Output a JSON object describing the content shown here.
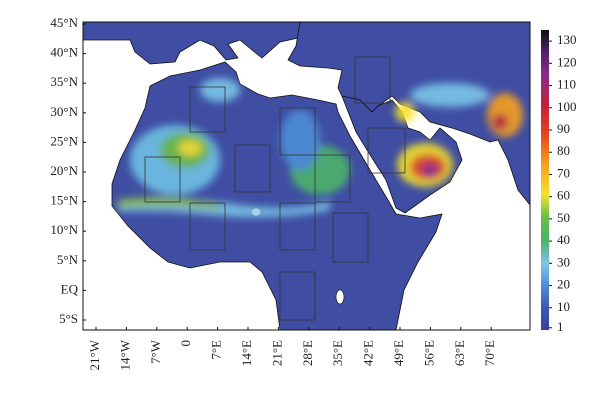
{
  "lat_labels": [
    "45°N",
    "40°N",
    "35°N",
    "30°N",
    "25°N",
    "20°N",
    "15°N",
    "10°N",
    "5°N",
    "EQ",
    "5°S"
  ],
  "lon_labels": [
    "21°W",
    "14°W",
    "7°W",
    "0",
    "7°E",
    "14°E",
    "21°E",
    "28°E",
    "35°E",
    "42°E",
    "49°E",
    "56°E",
    "63°E",
    "70°E"
  ],
  "colorbar": {
    "ticks": [
      1,
      10,
      20,
      30,
      40,
      50,
      60,
      70,
      80,
      90,
      100,
      110,
      120,
      130
    ],
    "range": [
      0,
      135
    ]
  }
}
